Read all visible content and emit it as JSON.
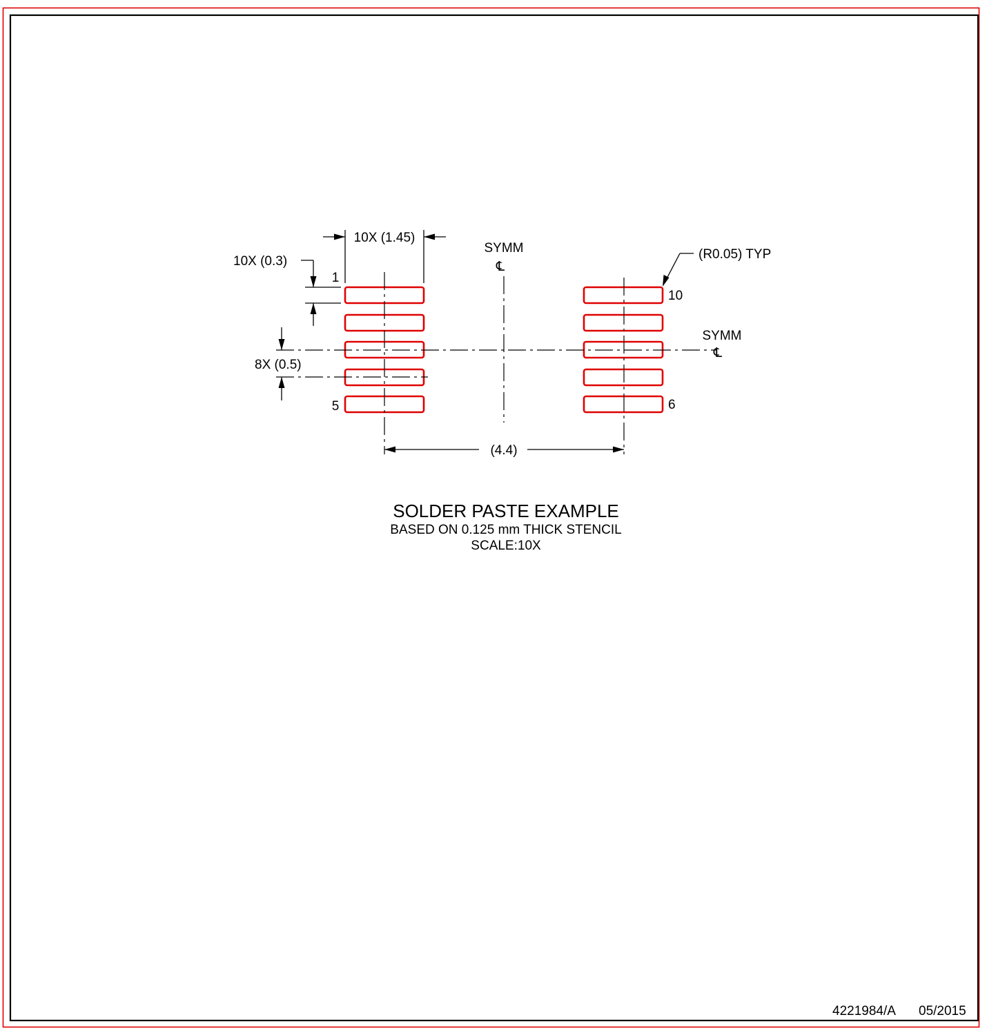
{
  "labels": {
    "pad_width": "10X (1.45)",
    "pad_height": "10X (0.3)",
    "pitch": "8X (0.5)",
    "row_spacing": "(4.4)",
    "corner_radius": "(R0.05) TYP",
    "symm_vertical": "SYMM",
    "symm_horizontal": "SYMM",
    "centerline_symbol": "℄",
    "pin_1": "1",
    "pin_5": "5",
    "pin_6": "6",
    "pin_10": "10"
  },
  "caption": {
    "title": "SOLDER PASTE EXAMPLE",
    "line1": "BASED ON 0.125 mm THICK STENCIL",
    "line2": "SCALE:10X"
  },
  "footer": {
    "doc_id": "4221984/A",
    "date": "05/2015"
  },
  "colors": {
    "outer_border": "#e00000",
    "pad_outline": "#e00000",
    "line": "#000000"
  }
}
